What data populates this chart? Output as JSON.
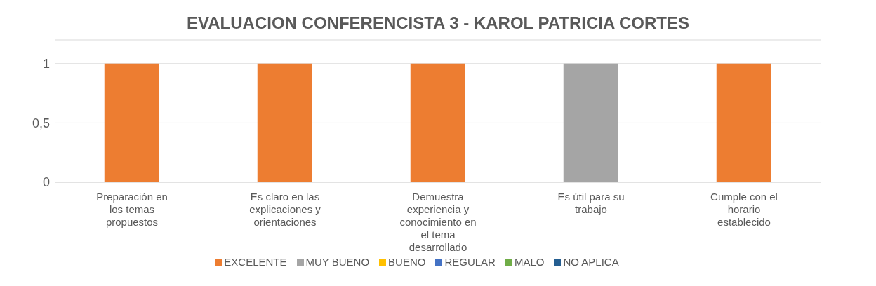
{
  "chart_data": {
    "type": "bar",
    "title": "EVALUACION CONFERENCISTA 3 - KAROL PATRICIA CORTES",
    "categories": [
      "Preparación en los temas propuestos",
      "Es claro en las explicaciones y orientaciones",
      "Demuestra experiencia y conocimiento en el tema desarrollado",
      "Es útil para su trabajo",
      "Cumple con el horario establecido"
    ],
    "series": [
      {
        "name": "EXCELENTE",
        "color": "#ed7d31",
        "values": [
          1,
          1,
          1,
          0,
          1
        ]
      },
      {
        "name": "MUY BUENO",
        "color": "#a5a5a5",
        "values": [
          0,
          0,
          0,
          1,
          0
        ]
      },
      {
        "name": "BUENO",
        "color": "#ffc000",
        "values": [
          0,
          0,
          0,
          0,
          0
        ]
      },
      {
        "name": "REGULAR",
        "color": "#4472c4",
        "values": [
          0,
          0,
          0,
          0,
          0
        ]
      },
      {
        "name": "MALO",
        "color": "#70ad47",
        "values": [
          0,
          0,
          0,
          0,
          0
        ]
      },
      {
        "name": "NO APLICA",
        "color": "#255e91",
        "values": [
          0,
          0,
          0,
          0,
          0
        ]
      }
    ],
    "stacked": true,
    "ylim": [
      0,
      1.2
    ],
    "yticks": [
      0,
      {
        "value": 0.5,
        "label": "0,5"
      },
      1
    ],
    "grid": "y",
    "legend": "bottom"
  }
}
